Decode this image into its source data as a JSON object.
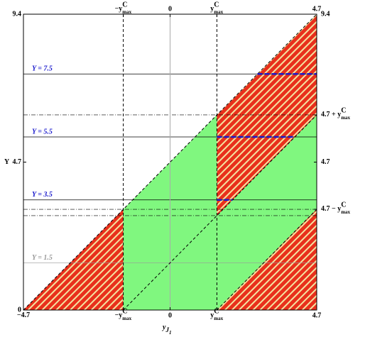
{
  "chart_data": {
    "type": "region",
    "x_label": {
      "text": "y",
      "sub": "J",
      "subsub": "1"
    },
    "y_label": "Y",
    "xlim": [
      -4.7,
      4.7
    ],
    "ylim": [
      0,
      9.4
    ],
    "xticks": [
      {
        "value": -4.7,
        "label": "−4.7"
      },
      {
        "value": -1.5,
        "label": "−y",
        "sup": "C",
        "sub": "max"
      },
      0,
      {
        "value": 1.5,
        "label": "y",
        "sup": "C",
        "sub": "max"
      },
      4.7
    ],
    "xticks_top": [
      {
        "value": -1.5,
        "label": "−y",
        "sup": "C",
        "sub": "max"
      },
      0,
      {
        "value": 1.5,
        "label": "y",
        "sup": "C",
        "sub": "max"
      },
      4.7
    ],
    "yticks": [
      0,
      4.7,
      9.4
    ],
    "y2ticks": [
      {
        "value": 3.2,
        "label": "4.7 − y",
        "sup": "C",
        "sub": "max"
      },
      4.7,
      {
        "value": 6.2,
        "label": "4.7 + y",
        "sup": "C",
        "sub": "max"
      },
      9.4
    ],
    "regions": [
      {
        "color": "#e8301c",
        "hatch": true,
        "x": [
          -4.7,
          -1.5,
          -1.5
        ],
        "y": [
          0,
          0,
          3.2
        ]
      },
      {
        "color": "#80f77f",
        "hatch": false,
        "x": [
          -1.5,
          1.5,
          1.5,
          -1.5
        ],
        "y": [
          0,
          0,
          6.2,
          3.2
        ]
      },
      {
        "color": "#80f77f",
        "hatch": false,
        "x": [
          1.5,
          4.7,
          4.7,
          1.5
        ],
        "y": [
          0,
          3.2,
          6.2,
          3.0
        ]
      },
      {
        "color": "#e8301c",
        "hatch": true,
        "x": [
          1.5,
          4.7,
          4.7,
          1.5
        ],
        "y": [
          3.0,
          6.2,
          9.4,
          6.2
        ]
      },
      {
        "color": "#e8301c",
        "hatch": true,
        "x": [
          1.5,
          4.7,
          4.7
        ],
        "y": [
          0,
          0,
          3.2
        ]
      }
    ],
    "vlines": [
      {
        "value": -1.5,
        "style": "dashed",
        "color": "#000000"
      },
      {
        "value": 0,
        "style": "solid",
        "color": "#aaaaaa"
      },
      {
        "value": 1.5,
        "style": "dashed",
        "color": "#000000"
      }
    ],
    "hlines": [
      {
        "value": 6.2,
        "style": "dashdot",
        "color": "#000000"
      },
      {
        "value": 3.2,
        "style": "dashdot",
        "color": "#000000"
      },
      {
        "value": 3.0,
        "style": "dashdot",
        "color": "#000000"
      }
    ],
    "diagonals": [
      {
        "x": [
          -4.7,
          4.7
        ],
        "y": [
          0,
          9.4
        ]
      },
      {
        "x": [
          -1.5,
          4.7
        ],
        "y": [
          0,
          6.2
        ]
      },
      {
        "x": [
          1.5,
          4.7
        ],
        "y": [
          0,
          3.2
        ]
      }
    ],
    "levels": [
      {
        "label": "Y = 7.5",
        "value": 7.5,
        "color": "#1a1acc"
      },
      {
        "label": "Y = 5.5",
        "value": 5.5,
        "color": "#1a1acc"
      },
      {
        "label": "Y = 3.5",
        "value": 3.5,
        "color": "#1a1acc"
      },
      {
        "label": "Y = 1.5",
        "value": 1.5,
        "color": "#999999"
      }
    ],
    "segments": [
      {
        "x": [
          2.8,
          4.7
        ],
        "y": [
          7.5,
          7.5
        ],
        "color": "#1a1acc"
      },
      {
        "x": [
          1.5,
          4.0
        ],
        "y": [
          5.5,
          5.5
        ],
        "color": "#1a1acc"
      },
      {
        "x": [
          1.5,
          2.0
        ],
        "y": [
          3.5,
          3.5
        ],
        "color": "#1a1acc"
      }
    ]
  }
}
